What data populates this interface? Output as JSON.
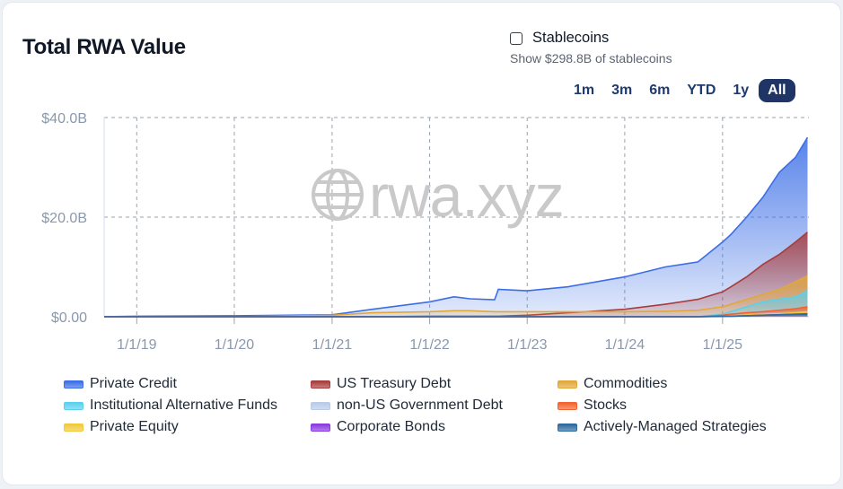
{
  "title": "Total RWA Value",
  "stablecoins": {
    "label": "Stablecoins",
    "sub": "Show $298.8B of stablecoins",
    "checked": false
  },
  "ranges": [
    "1m",
    "3m",
    "6m",
    "YTD",
    "1y",
    "All"
  ],
  "active_range": "All",
  "watermark": "rwa.xyz",
  "chart_data": {
    "type": "area",
    "stacked": false,
    "y_tick_labels": [
      "$40.0B",
      "$20.0B",
      "$0.00"
    ],
    "x_tick_labels": [
      "1/1/19",
      "1/1/20",
      "1/1/21",
      "1/1/22",
      "1/1/23",
      "1/1/24",
      "1/1/25"
    ],
    "ylim": [
      0,
      40
    ],
    "y_unit": "billions USD",
    "grid": "dashed",
    "legend_position": "bottom",
    "x": [
      "2018-09-01",
      "2019-01-01",
      "2020-01-01",
      "2021-01-01",
      "2021-06-01",
      "2022-01-01",
      "2022-04-01",
      "2022-06-01",
      "2022-09-01",
      "2022-09-15",
      "2023-01-01",
      "2023-06-01",
      "2024-01-01",
      "2024-06-01",
      "2024-10-01",
      "2025-01-01",
      "2025-02-01",
      "2025-04-01",
      "2025-06-01",
      "2025-08-01",
      "2025-10-01",
      "2025-11-15"
    ],
    "series": [
      {
        "name": "Private Credit",
        "color": "#3b6ee6",
        "values": [
          0.0,
          0.1,
          0.2,
          0.4,
          1.5,
          3.0,
          4.0,
          3.6,
          3.4,
          5.5,
          5.2,
          6.0,
          8.0,
          10.0,
          11.0,
          15.0,
          16.5,
          20.0,
          24.0,
          29.0,
          32.0,
          36.0
        ]
      },
      {
        "name": "US Treasury Debt",
        "color": "#a83b3b",
        "values": [
          0,
          0,
          0,
          0,
          0,
          0.1,
          0.1,
          0.1,
          0.1,
          0.1,
          0.3,
          0.8,
          1.5,
          2.5,
          3.5,
          5.0,
          6.0,
          8.0,
          10.5,
          12.5,
          15.0,
          17.0
        ]
      },
      {
        "name": "Commodities",
        "color": "#e1a73a",
        "values": [
          0,
          0,
          0,
          0.3,
          0.8,
          1.0,
          1.2,
          1.2,
          1.0,
          1.0,
          1.0,
          1.0,
          1.0,
          1.1,
          1.3,
          2.0,
          2.5,
          3.5,
          4.5,
          5.5,
          7.0,
          8.2
        ]
      },
      {
        "name": "Institutional Alternative Funds",
        "color": "#5ad0ee",
        "values": [
          0,
          0,
          0,
          0,
          0,
          0,
          0,
          0,
          0,
          0,
          0,
          0,
          0,
          0,
          0,
          0.5,
          1.0,
          2.0,
          3.0,
          3.5,
          4.0,
          5.2
        ]
      },
      {
        "name": "non-US Government Debt",
        "color": "#b9cbe6",
        "values": [
          0,
          0,
          0,
          0,
          0,
          0,
          0,
          0,
          0,
          0,
          0,
          0,
          0,
          0,
          0,
          0.2,
          0.3,
          0.5,
          0.7,
          0.8,
          0.9,
          1.0
        ]
      },
      {
        "name": "Stocks",
        "color": "#f2632e",
        "values": [
          0,
          0,
          0,
          0,
          0,
          0,
          0,
          0,
          0,
          0,
          0,
          0,
          0,
          0,
          0,
          0.3,
          0.5,
          0.8,
          1.0,
          1.3,
          1.6,
          2.0
        ]
      },
      {
        "name": "Private Equity",
        "color": "#f2c93b",
        "values": [
          0,
          0,
          0,
          0,
          0,
          0,
          0,
          0,
          0,
          0,
          0,
          0,
          0,
          0,
          0,
          0.1,
          0.2,
          0.3,
          0.5,
          0.6,
          0.8,
          1.0
        ]
      },
      {
        "name": "Corporate Bonds",
        "color": "#8b3ae0",
        "values": [
          0,
          0,
          0,
          0,
          0,
          0,
          0,
          0,
          0,
          0,
          0,
          0,
          0,
          0,
          0,
          0.05,
          0.1,
          0.2,
          0.3,
          0.4,
          0.5,
          0.6
        ]
      },
      {
        "name": "Actively-Managed Strategies",
        "color": "#2e6a9e",
        "values": [
          0,
          0,
          0,
          0,
          0,
          0,
          0,
          0,
          0,
          0,
          0,
          0,
          0,
          0,
          0,
          0.1,
          0.1,
          0.2,
          0.3,
          0.4,
          0.5,
          0.5
        ]
      }
    ]
  },
  "legend": [
    {
      "label": "Private Credit",
      "color": "#3b6ee6"
    },
    {
      "label": "US Treasury Debt",
      "color": "#a83b3b"
    },
    {
      "label": "Commodities",
      "color": "#e1a73a"
    },
    {
      "label": "Institutional Alternative Funds",
      "color": "#5ad0ee"
    },
    {
      "label": "non-US Government Debt",
      "color": "#b9cbe6"
    },
    {
      "label": "Stocks",
      "color": "#f2632e"
    },
    {
      "label": "Private Equity",
      "color": "#f2c93b"
    },
    {
      "label": "Corporate Bonds",
      "color": "#8b3ae0"
    },
    {
      "label": "Actively-Managed Strategies",
      "color": "#2e6a9e"
    }
  ]
}
